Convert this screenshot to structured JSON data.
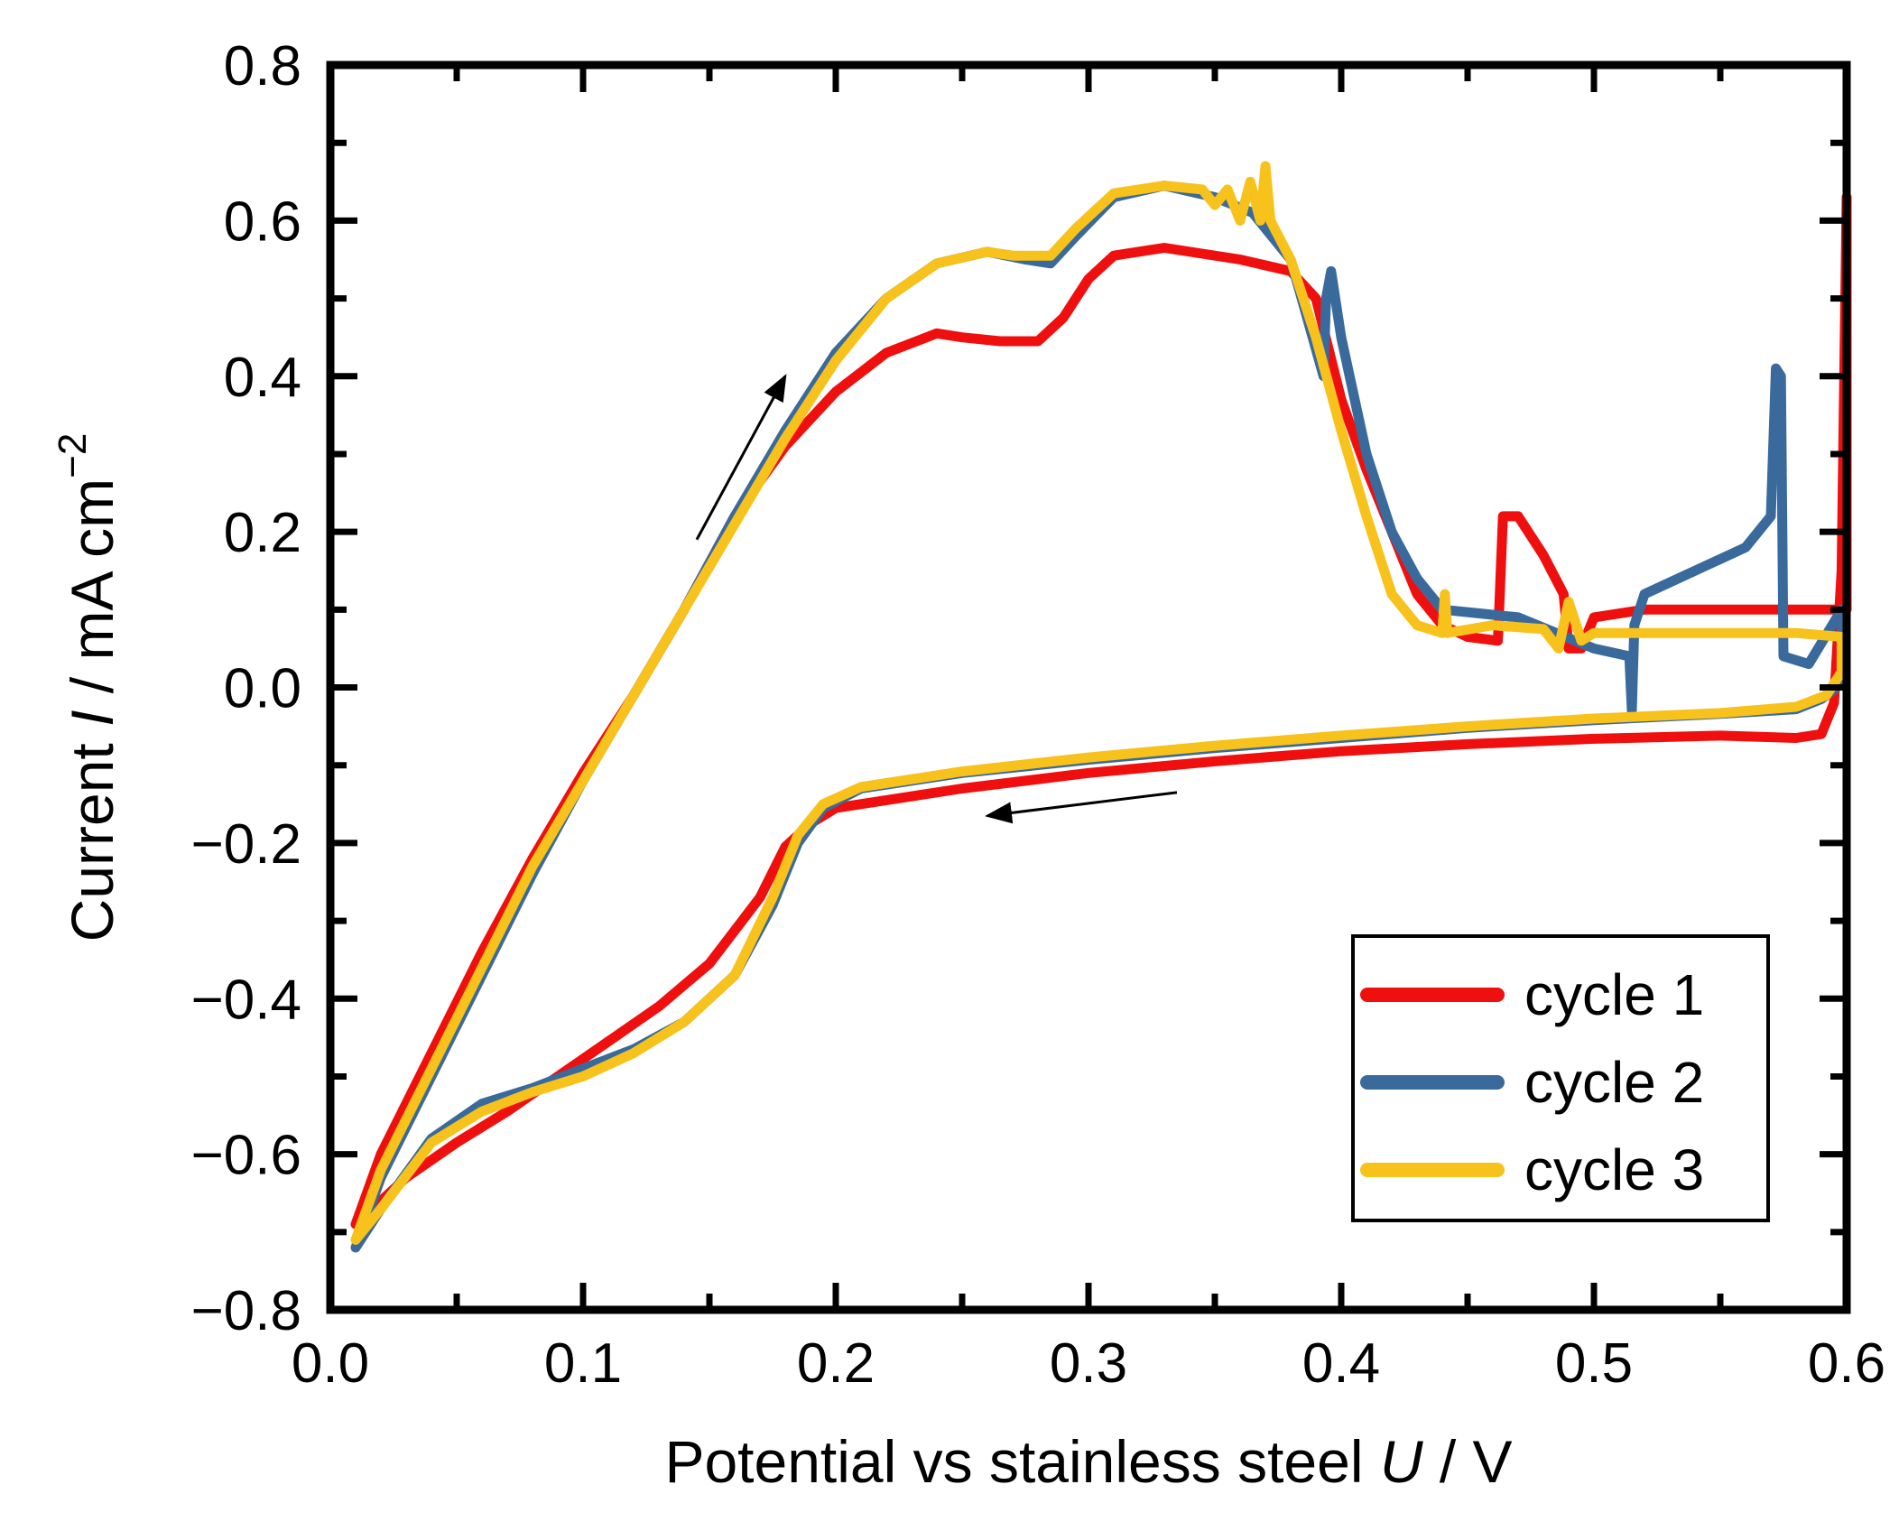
{
  "chart_data": {
    "type": "line",
    "title": "",
    "xlabel": {
      "main": "Potential vs stainless steel ",
      "var": "U",
      "unit": " / V"
    },
    "ylabel": {
      "main": "Current ",
      "var": "I",
      "unit": " / mA cm",
      "sup": "−2"
    },
    "xlim": [
      0.0,
      0.6
    ],
    "ylim": [
      -0.8,
      0.8
    ],
    "x_ticks": [
      "0.0",
      "0.1",
      "0.2",
      "0.3",
      "0.4",
      "0.5",
      "0.6"
    ],
    "y_ticks": [
      "−0.8",
      "−0.6",
      "−0.4",
      "−0.2",
      "0.0",
      "0.2",
      "0.4",
      "0.6",
      "0.8"
    ],
    "legend_position": "bottom-right",
    "series": [
      {
        "name": "cycle 1",
        "color": "#f00f0f",
        "points": [
          [
            0.01,
            -0.69
          ],
          [
            0.03,
            -0.63
          ],
          [
            0.05,
            -0.585
          ],
          [
            0.07,
            -0.545
          ],
          [
            0.09,
            -0.5
          ],
          [
            0.11,
            -0.455
          ],
          [
            0.13,
            -0.41
          ],
          [
            0.15,
            -0.355
          ],
          [
            0.17,
            -0.27
          ],
          [
            0.18,
            -0.205
          ],
          [
            0.19,
            -0.175
          ],
          [
            0.2,
            -0.155
          ],
          [
            0.25,
            -0.13
          ],
          [
            0.3,
            -0.11
          ],
          [
            0.35,
            -0.095
          ],
          [
            0.4,
            -0.082
          ],
          [
            0.45,
            -0.073
          ],
          [
            0.5,
            -0.066
          ],
          [
            0.55,
            -0.062
          ],
          [
            0.58,
            -0.065
          ],
          [
            0.59,
            -0.06
          ],
          [
            0.595,
            -0.02
          ],
          [
            0.598,
            0.15
          ],
          [
            0.6,
            0.63
          ],
          [
            0.6,
            0.1
          ],
          [
            0.58,
            0.1
          ],
          [
            0.55,
            0.1
          ],
          [
            0.52,
            0.1
          ],
          [
            0.5,
            0.09
          ],
          [
            0.495,
            0.05
          ],
          [
            0.49,
            0.05
          ],
          [
            0.488,
            0.12
          ],
          [
            0.48,
            0.17
          ],
          [
            0.47,
            0.22
          ],
          [
            0.464,
            0.22
          ],
          [
            0.462,
            0.06
          ],
          [
            0.45,
            0.065
          ],
          [
            0.44,
            0.08
          ],
          [
            0.43,
            0.12
          ],
          [
            0.42,
            0.2
          ],
          [
            0.41,
            0.28
          ],
          [
            0.4,
            0.37
          ],
          [
            0.39,
            0.5
          ],
          [
            0.38,
            0.535
          ],
          [
            0.36,
            0.55
          ],
          [
            0.33,
            0.565
          ],
          [
            0.31,
            0.555
          ],
          [
            0.3,
            0.525
          ],
          [
            0.29,
            0.475
          ],
          [
            0.28,
            0.445
          ],
          [
            0.265,
            0.445
          ],
          [
            0.25,
            0.45
          ],
          [
            0.24,
            0.455
          ],
          [
            0.22,
            0.43
          ],
          [
            0.2,
            0.38
          ],
          [
            0.18,
            0.31
          ],
          [
            0.16,
            0.22
          ],
          [
            0.14,
            0.1
          ],
          [
            0.12,
            -0.01
          ],
          [
            0.1,
            -0.11
          ],
          [
            0.08,
            -0.22
          ],
          [
            0.06,
            -0.34
          ],
          [
            0.04,
            -0.47
          ],
          [
            0.02,
            -0.6
          ],
          [
            0.01,
            -0.69
          ]
        ]
      },
      {
        "name": "cycle 2",
        "color": "#3a6a9c",
        "points": [
          [
            0.01,
            -0.72
          ],
          [
            0.02,
            -0.67
          ],
          [
            0.04,
            -0.58
          ],
          [
            0.06,
            -0.535
          ],
          [
            0.08,
            -0.515
          ],
          [
            0.1,
            -0.49
          ],
          [
            0.12,
            -0.465
          ],
          [
            0.14,
            -0.43
          ],
          [
            0.16,
            -0.37
          ],
          [
            0.175,
            -0.28
          ],
          [
            0.185,
            -0.2
          ],
          [
            0.195,
            -0.155
          ],
          [
            0.21,
            -0.13
          ],
          [
            0.25,
            -0.11
          ],
          [
            0.3,
            -0.093
          ],
          [
            0.35,
            -0.078
          ],
          [
            0.4,
            -0.065
          ],
          [
            0.45,
            -0.052
          ],
          [
            0.5,
            -0.042
          ],
          [
            0.55,
            -0.034
          ],
          [
            0.58,
            -0.028
          ],
          [
            0.59,
            -0.015
          ],
          [
            0.598,
            0.005
          ],
          [
            0.598,
            0.1
          ],
          [
            0.585,
            0.03
          ],
          [
            0.575,
            0.04
          ],
          [
            0.574,
            0.4
          ],
          [
            0.572,
            0.41
          ],
          [
            0.57,
            0.22
          ],
          [
            0.56,
            0.18
          ],
          [
            0.54,
            0.15
          ],
          [
            0.52,
            0.12
          ],
          [
            0.516,
            0.08
          ],
          [
            0.515,
            -0.03
          ],
          [
            0.514,
            0.04
          ],
          [
            0.5,
            0.05
          ],
          [
            0.47,
            0.09
          ],
          [
            0.44,
            0.1
          ],
          [
            0.43,
            0.14
          ],
          [
            0.42,
            0.2
          ],
          [
            0.41,
            0.3
          ],
          [
            0.4,
            0.45
          ],
          [
            0.396,
            0.535
          ],
          [
            0.394,
            0.5
          ],
          [
            0.393,
            0.4
          ],
          [
            0.38,
            0.55
          ],
          [
            0.365,
            0.61
          ],
          [
            0.35,
            0.63
          ],
          [
            0.33,
            0.645
          ],
          [
            0.31,
            0.63
          ],
          [
            0.295,
            0.58
          ],
          [
            0.285,
            0.545
          ],
          [
            0.275,
            0.55
          ],
          [
            0.26,
            0.56
          ],
          [
            0.24,
            0.545
          ],
          [
            0.22,
            0.5
          ],
          [
            0.2,
            0.43
          ],
          [
            0.18,
            0.33
          ],
          [
            0.16,
            0.22
          ],
          [
            0.14,
            0.1
          ],
          [
            0.12,
            -0.01
          ],
          [
            0.1,
            -0.12
          ],
          [
            0.08,
            -0.24
          ],
          [
            0.06,
            -0.37
          ],
          [
            0.04,
            -0.5
          ],
          [
            0.02,
            -0.63
          ],
          [
            0.01,
            -0.72
          ]
        ]
      },
      {
        "name": "cycle 3",
        "color": "#f7c21c",
        "points": [
          [
            0.01,
            -0.71
          ],
          [
            0.02,
            -0.67
          ],
          [
            0.04,
            -0.585
          ],
          [
            0.06,
            -0.545
          ],
          [
            0.08,
            -0.52
          ],
          [
            0.1,
            -0.5
          ],
          [
            0.12,
            -0.47
          ],
          [
            0.14,
            -0.43
          ],
          [
            0.16,
            -0.37
          ],
          [
            0.175,
            -0.27
          ],
          [
            0.185,
            -0.19
          ],
          [
            0.195,
            -0.15
          ],
          [
            0.21,
            -0.128
          ],
          [
            0.25,
            -0.108
          ],
          [
            0.3,
            -0.09
          ],
          [
            0.35,
            -0.075
          ],
          [
            0.4,
            -0.062
          ],
          [
            0.45,
            -0.05
          ],
          [
            0.5,
            -0.04
          ],
          [
            0.55,
            -0.033
          ],
          [
            0.58,
            -0.025
          ],
          [
            0.592,
            -0.01
          ],
          [
            0.598,
            0.02
          ],
          [
            0.598,
            0.065
          ],
          [
            0.58,
            0.07
          ],
          [
            0.55,
            0.07
          ],
          [
            0.52,
            0.07
          ],
          [
            0.5,
            0.07
          ],
          [
            0.495,
            0.06
          ],
          [
            0.49,
            0.11
          ],
          [
            0.486,
            0.05
          ],
          [
            0.48,
            0.075
          ],
          [
            0.46,
            0.08
          ],
          [
            0.442,
            0.07
          ],
          [
            0.441,
            0.12
          ],
          [
            0.44,
            0.07
          ],
          [
            0.43,
            0.08
          ],
          [
            0.42,
            0.12
          ],
          [
            0.41,
            0.22
          ],
          [
            0.4,
            0.33
          ],
          [
            0.39,
            0.45
          ],
          [
            0.38,
            0.55
          ],
          [
            0.372,
            0.6
          ],
          [
            0.37,
            0.67
          ],
          [
            0.368,
            0.6
          ],
          [
            0.364,
            0.65
          ],
          [
            0.36,
            0.6
          ],
          [
            0.355,
            0.64
          ],
          [
            0.35,
            0.62
          ],
          [
            0.345,
            0.64
          ],
          [
            0.33,
            0.645
          ],
          [
            0.31,
            0.635
          ],
          [
            0.295,
            0.59
          ],
          [
            0.285,
            0.555
          ],
          [
            0.27,
            0.555
          ],
          [
            0.26,
            0.56
          ],
          [
            0.24,
            0.545
          ],
          [
            0.22,
            0.5
          ],
          [
            0.2,
            0.42
          ],
          [
            0.18,
            0.32
          ],
          [
            0.16,
            0.21
          ],
          [
            0.14,
            0.1
          ],
          [
            0.12,
            -0.01
          ],
          [
            0.1,
            -0.12
          ],
          [
            0.08,
            -0.23
          ],
          [
            0.06,
            -0.36
          ],
          [
            0.04,
            -0.49
          ],
          [
            0.02,
            -0.62
          ],
          [
            0.01,
            -0.71
          ]
        ]
      }
    ],
    "annotations": [
      {
        "type": "arrow",
        "from": [
          0.145,
          0.19
        ],
        "to": [
          0.18,
          0.4
        ],
        "color": "#000000"
      },
      {
        "type": "arrow",
        "from": [
          0.335,
          -0.135
        ],
        "to": [
          0.26,
          -0.165
        ],
        "color": "#000000"
      }
    ]
  }
}
